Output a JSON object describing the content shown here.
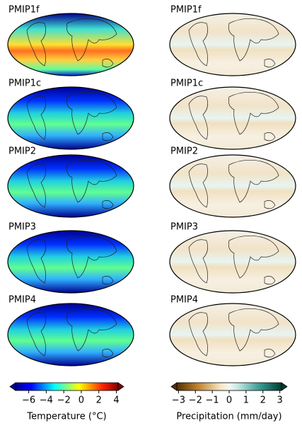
{
  "temperature_maps": {
    "labels": [
      "PMIP1f",
      "PMIP1c",
      "PMIP2",
      "PMIP3",
      "PMIP4"
    ]
  },
  "precipitation_maps": {
    "labels": [
      "PMIP1f",
      "PMIP1c",
      "PMIP2",
      "PMIP3",
      "PMIP4"
    ]
  },
  "colorbars": [
    {
      "label": "Temperature (°C)",
      "lim": [
        -7.5,
        4.2
      ],
      "colormap": "jet",
      "ticks": [
        {
          "value": -6,
          "label": "−6"
        },
        {
          "value": -4,
          "label": "−4"
        },
        {
          "value": -2,
          "label": "−2"
        },
        0,
        2,
        4
      ]
    },
    {
      "label": "Precipitation (mm/day)",
      "lim": [
        -3.1,
        3.1
      ],
      "colormap": "BrBG",
      "ticks": [
        {
          "value": -3,
          "label": "−3"
        },
        {
          "value": -2,
          "label": "−2"
        },
        {
          "value": -1,
          "label": "−1"
        },
        0,
        1,
        2,
        3
      ]
    }
  ]
}
